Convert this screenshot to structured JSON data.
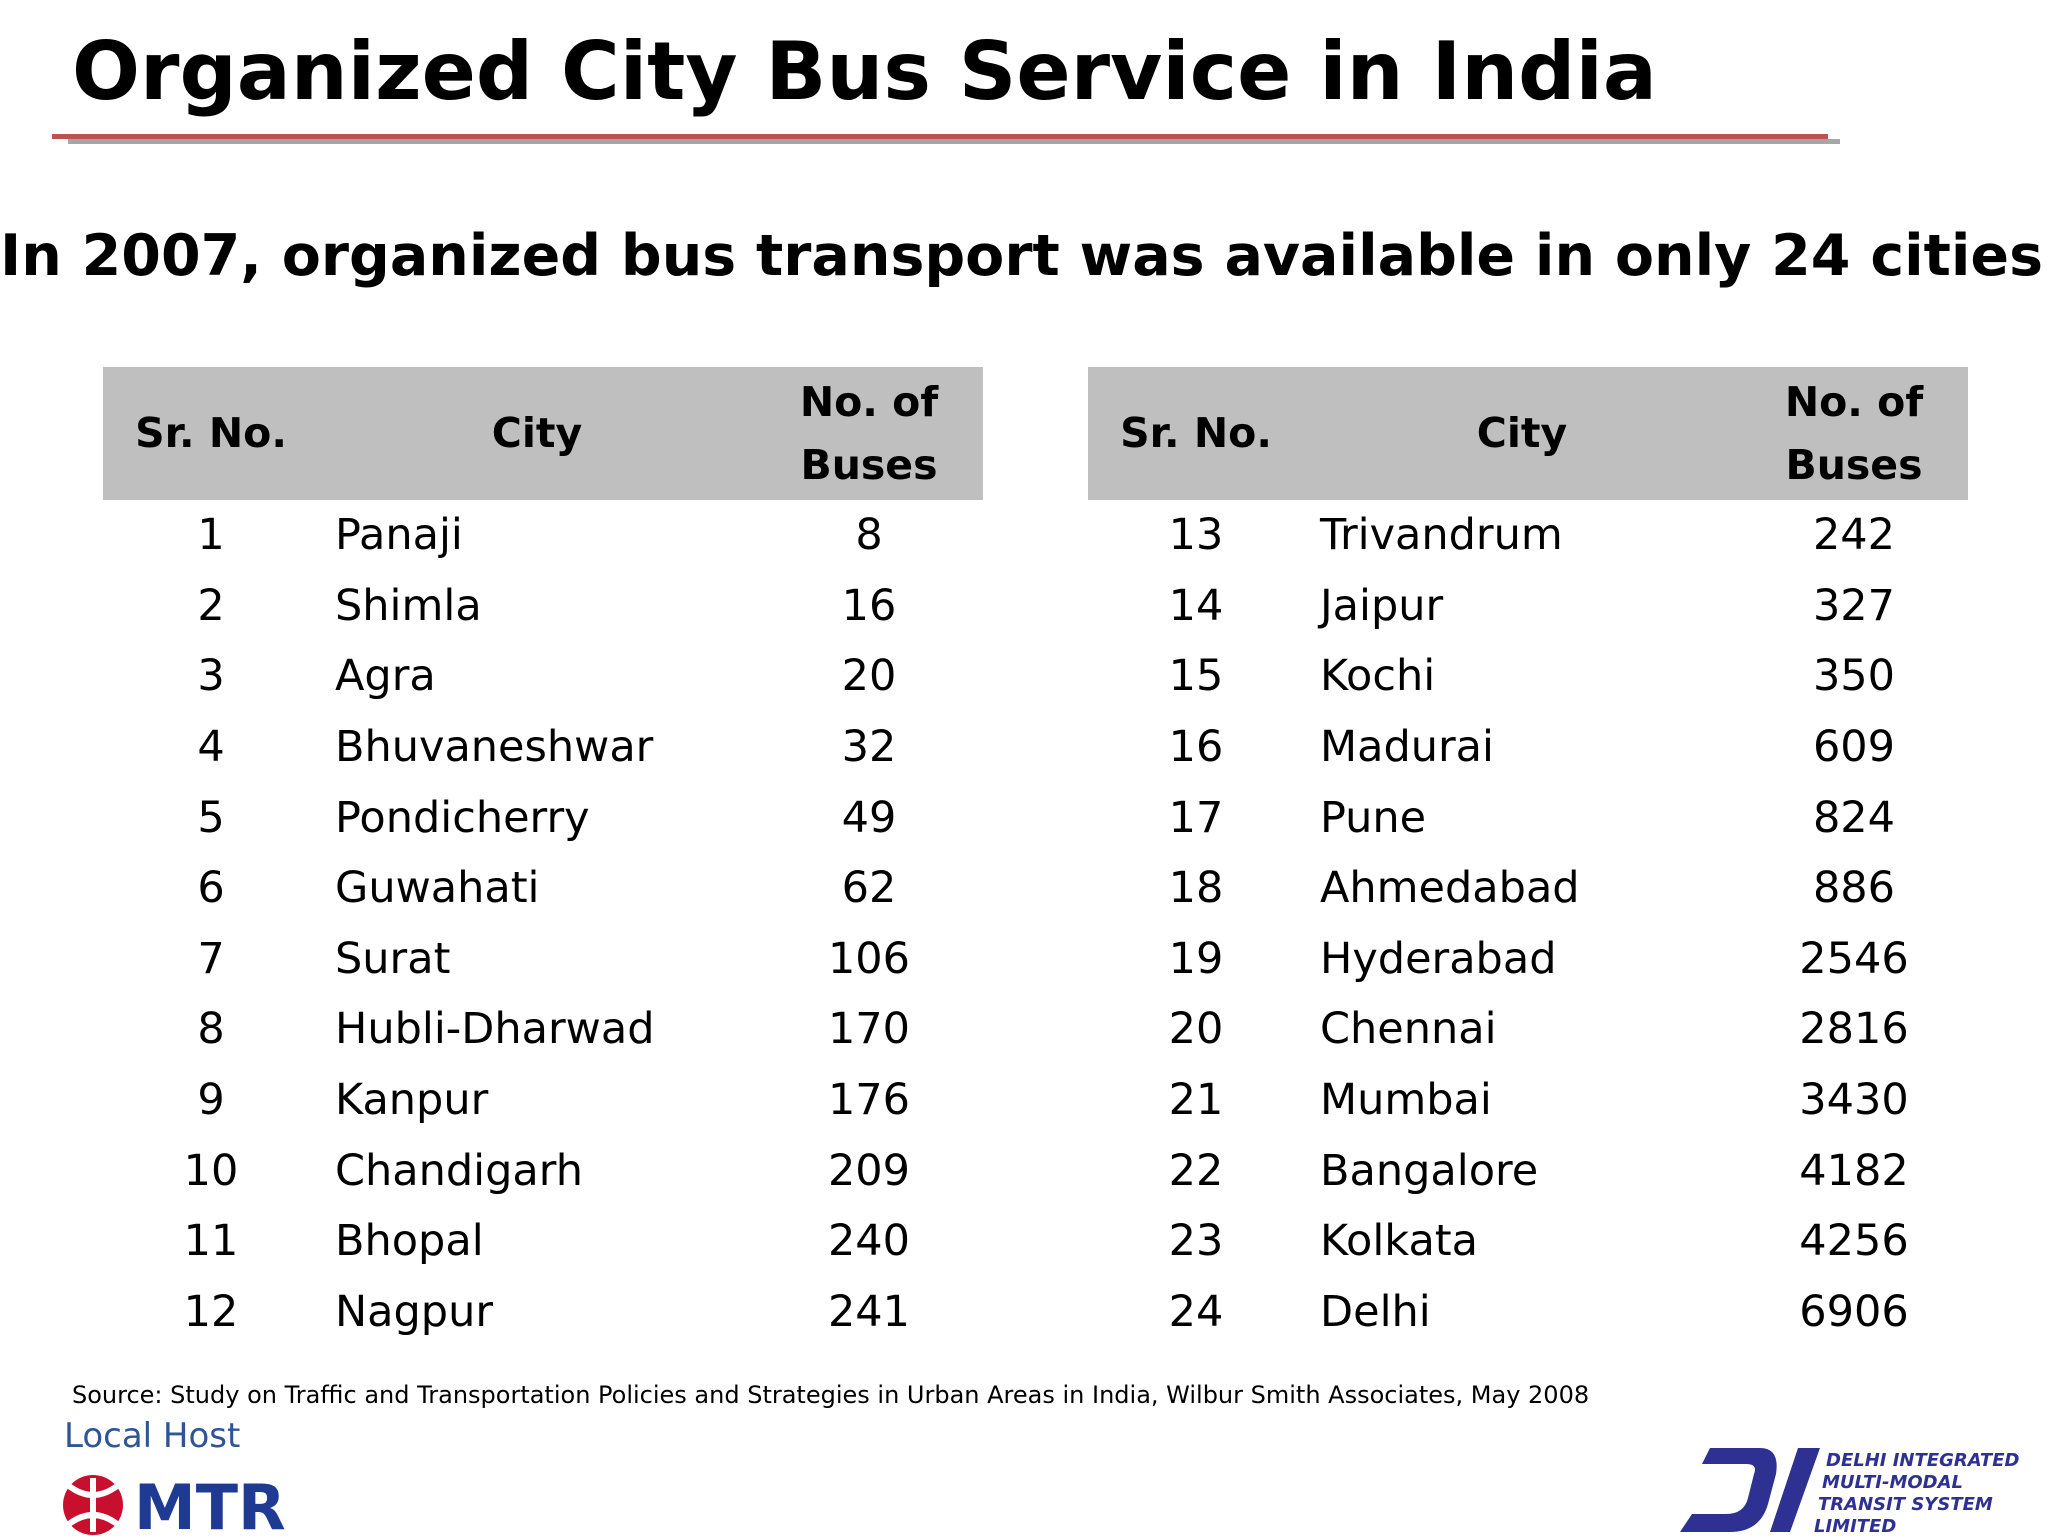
{
  "slide": {
    "title": "Organized City Bus Service in India",
    "subtitle": "In 2007, organized bus transport was available in only 24 cities."
  },
  "table": {
    "headers": {
      "sr_no": "Sr. No.",
      "city": "City",
      "buses_line1": "No. of",
      "buses_line2": "Buses"
    },
    "left_rows": [
      {
        "sr": "1",
        "city": "Panaji",
        "buses": "8"
      },
      {
        "sr": "2",
        "city": "Shimla",
        "buses": "16"
      },
      {
        "sr": "3",
        "city": "Agra",
        "buses": "20"
      },
      {
        "sr": "4",
        "city": "Bhuvaneshwar",
        "buses": "32"
      },
      {
        "sr": "5",
        "city": "Pondicherry",
        "buses": "49"
      },
      {
        "sr": "6",
        "city": "Guwahati",
        "buses": "62"
      },
      {
        "sr": "7",
        "city": "Surat",
        "buses": "106"
      },
      {
        "sr": "8",
        "city": "Hubli-Dharwad",
        "buses": "170"
      },
      {
        "sr": "9",
        "city": "Kanpur",
        "buses": "176"
      },
      {
        "sr": "10",
        "city": "Chandigarh",
        "buses": "209"
      },
      {
        "sr": "11",
        "city": "Bhopal",
        "buses": "240"
      },
      {
        "sr": "12",
        "city": "Nagpur",
        "buses": "241"
      }
    ],
    "right_rows": [
      {
        "sr": "13",
        "city": "Trivandrum",
        "buses": "242"
      },
      {
        "sr": "14",
        "city": "Jaipur",
        "buses": "327"
      },
      {
        "sr": "15",
        "city": "Kochi",
        "buses": "350"
      },
      {
        "sr": "16",
        "city": "Madurai",
        "buses": "609"
      },
      {
        "sr": "17",
        "city": "Pune",
        "buses": "824"
      },
      {
        "sr": "18",
        "city": "Ahmedabad",
        "buses": "886"
      },
      {
        "sr": "19",
        "city": "Hyderabad",
        "buses": "2546"
      },
      {
        "sr": "20",
        "city": "Chennai",
        "buses": "2816"
      },
      {
        "sr": "21",
        "city": "Mumbai",
        "buses": "3430"
      },
      {
        "sr": "22",
        "city": "Bangalore",
        "buses": "4182"
      },
      {
        "sr": "23",
        "city": "Kolkata",
        "buses": "4256"
      },
      {
        "sr": "24",
        "city": "Delhi",
        "buses": "6906"
      }
    ]
  },
  "footer": {
    "source": "Source: Study on Traffic and Transportation Policies and Strategies in Urban Areas in India, Wilbur Smith Associates, May 2008",
    "local_host": "Local Host",
    "mtr_logo": {
      "text": "MTR",
      "icon": "mtr-emblem-icon",
      "color": "#c8102e",
      "text_color": "#1f3a93"
    },
    "dimts_logo": {
      "line1": "DELHI INTEGRATED",
      "line2": "MULTI-MODAL",
      "line3": "TRANSIT SYSTEM",
      "line4": "LIMITED",
      "icon": "dimts-emblem-icon",
      "color": "#2e3192"
    }
  },
  "colors": {
    "title_rule_red": "#c0504d",
    "title_rule_gray": "#a6a6a6",
    "table_header_bg": "#bfbfbf"
  }
}
